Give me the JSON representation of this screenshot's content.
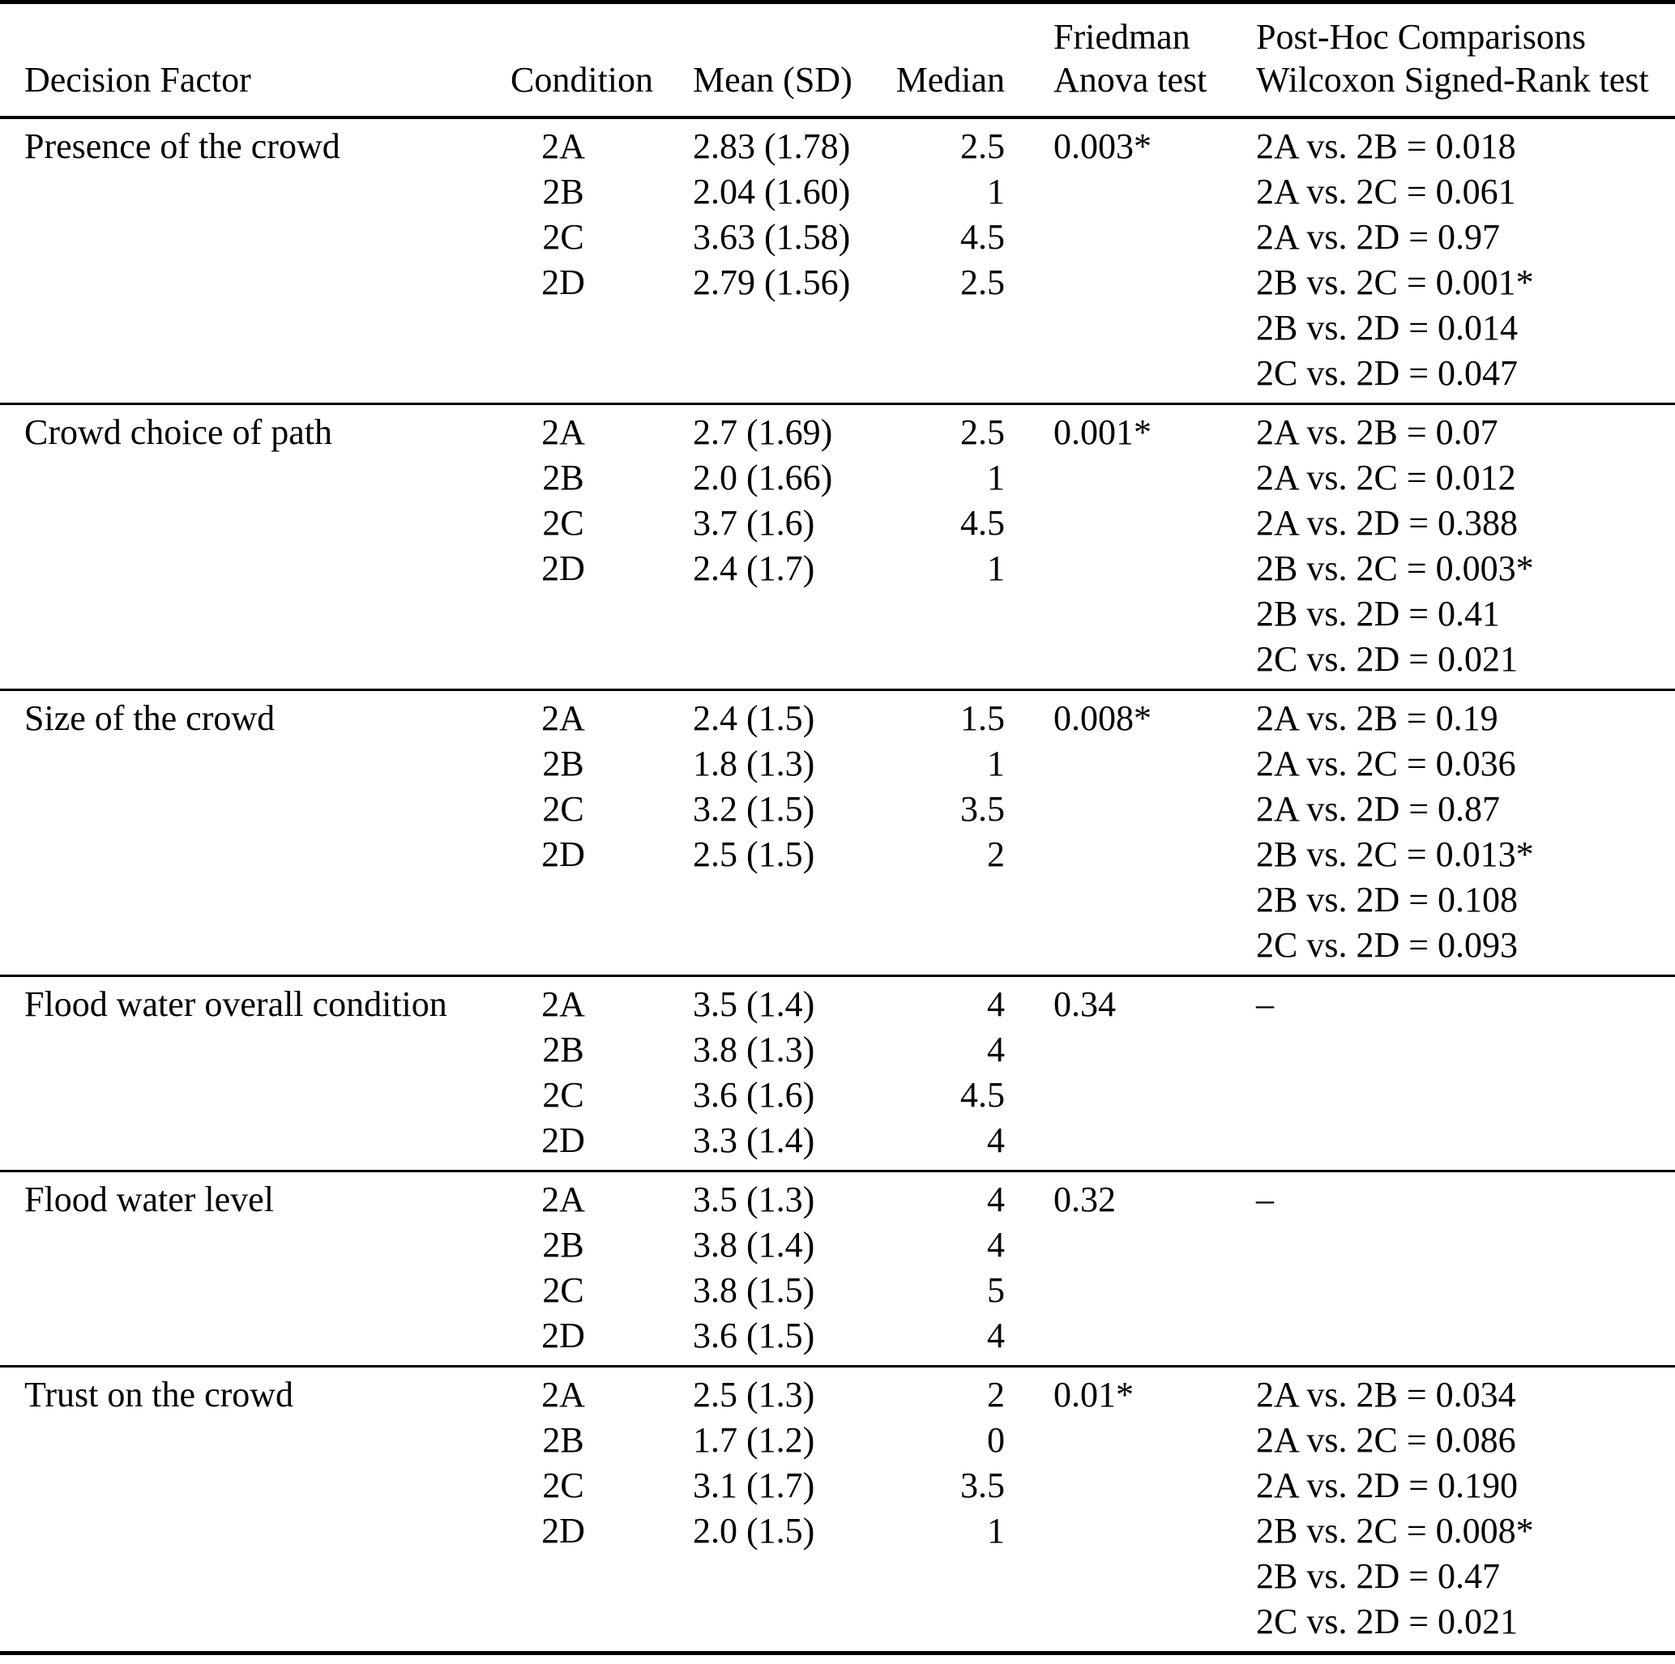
{
  "table": {
    "headers": {
      "decision_factor": "Decision Factor",
      "condition": "Condition",
      "mean_sd": "Mean (SD)",
      "median": "Median",
      "friedman_line1": "Friedman",
      "friedman_line2": "Anova test",
      "posthoc_line1": "Post-Hoc Comparisons",
      "posthoc_line2": "Wilcoxon Signed-Rank test"
    },
    "sections": [
      {
        "factor": "Presence of the crowd",
        "friedman": "0.003*",
        "rows": [
          {
            "condition": "2A",
            "mean_sd": "2.83 (1.78)",
            "median": "2.5"
          },
          {
            "condition": "2B",
            "mean_sd": "2.04 (1.60)",
            "median": "1"
          },
          {
            "condition": "2C",
            "mean_sd": "3.63 (1.58)",
            "median": "4.5"
          },
          {
            "condition": "2D",
            "mean_sd": "2.79 (1.56)",
            "median": "2.5"
          }
        ],
        "posthoc": [
          "2A vs. 2B = 0.018",
          "2A vs. 2C = 0.061",
          "2A vs. 2D = 0.97",
          "2B vs. 2C = 0.001*",
          "2B vs. 2D = 0.014",
          "2C vs. 2D = 0.047"
        ]
      },
      {
        "factor": "Crowd choice of path",
        "friedman": "0.001*",
        "rows": [
          {
            "condition": "2A",
            "mean_sd": "2.7 (1.69)",
            "median": "2.5"
          },
          {
            "condition": "2B",
            "mean_sd": "2.0 (1.66)",
            "median": "1"
          },
          {
            "condition": "2C",
            "mean_sd": "3.7 (1.6)",
            "median": "4.5"
          },
          {
            "condition": "2D",
            "mean_sd": "2.4 (1.7)",
            "median": "1"
          }
        ],
        "posthoc": [
          "2A vs. 2B = 0.07",
          "2A vs. 2C = 0.012",
          "2A vs. 2D = 0.388",
          "2B vs. 2C = 0.003*",
          "2B vs. 2D = 0.41",
          "2C vs. 2D = 0.021"
        ]
      },
      {
        "factor": "Size of the crowd",
        "friedman": "0.008*",
        "rows": [
          {
            "condition": "2A",
            "mean_sd": "2.4 (1.5)",
            "median": "1.5"
          },
          {
            "condition": "2B",
            "mean_sd": "1.8 (1.3)",
            "median": "1"
          },
          {
            "condition": "2C",
            "mean_sd": "3.2 (1.5)",
            "median": "3.5"
          },
          {
            "condition": "2D",
            "mean_sd": "2.5 (1.5)",
            "median": "2"
          }
        ],
        "posthoc": [
          "2A vs. 2B = 0.19",
          "2A vs. 2C = 0.036",
          "2A vs. 2D = 0.87",
          "2B vs. 2C = 0.013*",
          "2B vs. 2D = 0.108",
          "2C vs. 2D = 0.093"
        ]
      },
      {
        "factor": "Flood water overall condition",
        "friedman": "0.34",
        "rows": [
          {
            "condition": "2A",
            "mean_sd": "3.5 (1.4)",
            "median": "4"
          },
          {
            "condition": "2B",
            "mean_sd": "3.8 (1.3)",
            "median": "4"
          },
          {
            "condition": "2C",
            "mean_sd": "3.6 (1.6)",
            "median": "4.5"
          },
          {
            "condition": "2D",
            "mean_sd": "3.3 (1.4)",
            "median": "4"
          }
        ],
        "posthoc": [
          "–"
        ]
      },
      {
        "factor": "Flood water level",
        "friedman": "0.32",
        "rows": [
          {
            "condition": "2A",
            "mean_sd": "3.5 (1.3)",
            "median": "4"
          },
          {
            "condition": "2B",
            "mean_sd": "3.8 (1.4)",
            "median": "4"
          },
          {
            "condition": "2C",
            "mean_sd": "3.8 (1.5)",
            "median": "5"
          },
          {
            "condition": "2D",
            "mean_sd": "3.6 (1.5)",
            "median": "4"
          }
        ],
        "posthoc": [
          "–"
        ]
      },
      {
        "factor": "Trust on the crowd",
        "friedman": "0.01*",
        "rows": [
          {
            "condition": "2A",
            "mean_sd": "2.5 (1.3)",
            "median": "2"
          },
          {
            "condition": "2B",
            "mean_sd": "1.7 (1.2)",
            "median": "0"
          },
          {
            "condition": "2C",
            "mean_sd": "3.1 (1.7)",
            "median": "3.5"
          },
          {
            "condition": "2D",
            "mean_sd": "2.0 (1.5)",
            "median": "1"
          }
        ],
        "posthoc": [
          "2A vs. 2B = 0.034",
          "2A vs. 2C = 0.086",
          "2A vs. 2D = 0.190",
          "2B vs. 2C = 0.008*",
          "2B vs. 2D = 0.47",
          "2C vs. 2D = 0.021"
        ]
      }
    ]
  }
}
